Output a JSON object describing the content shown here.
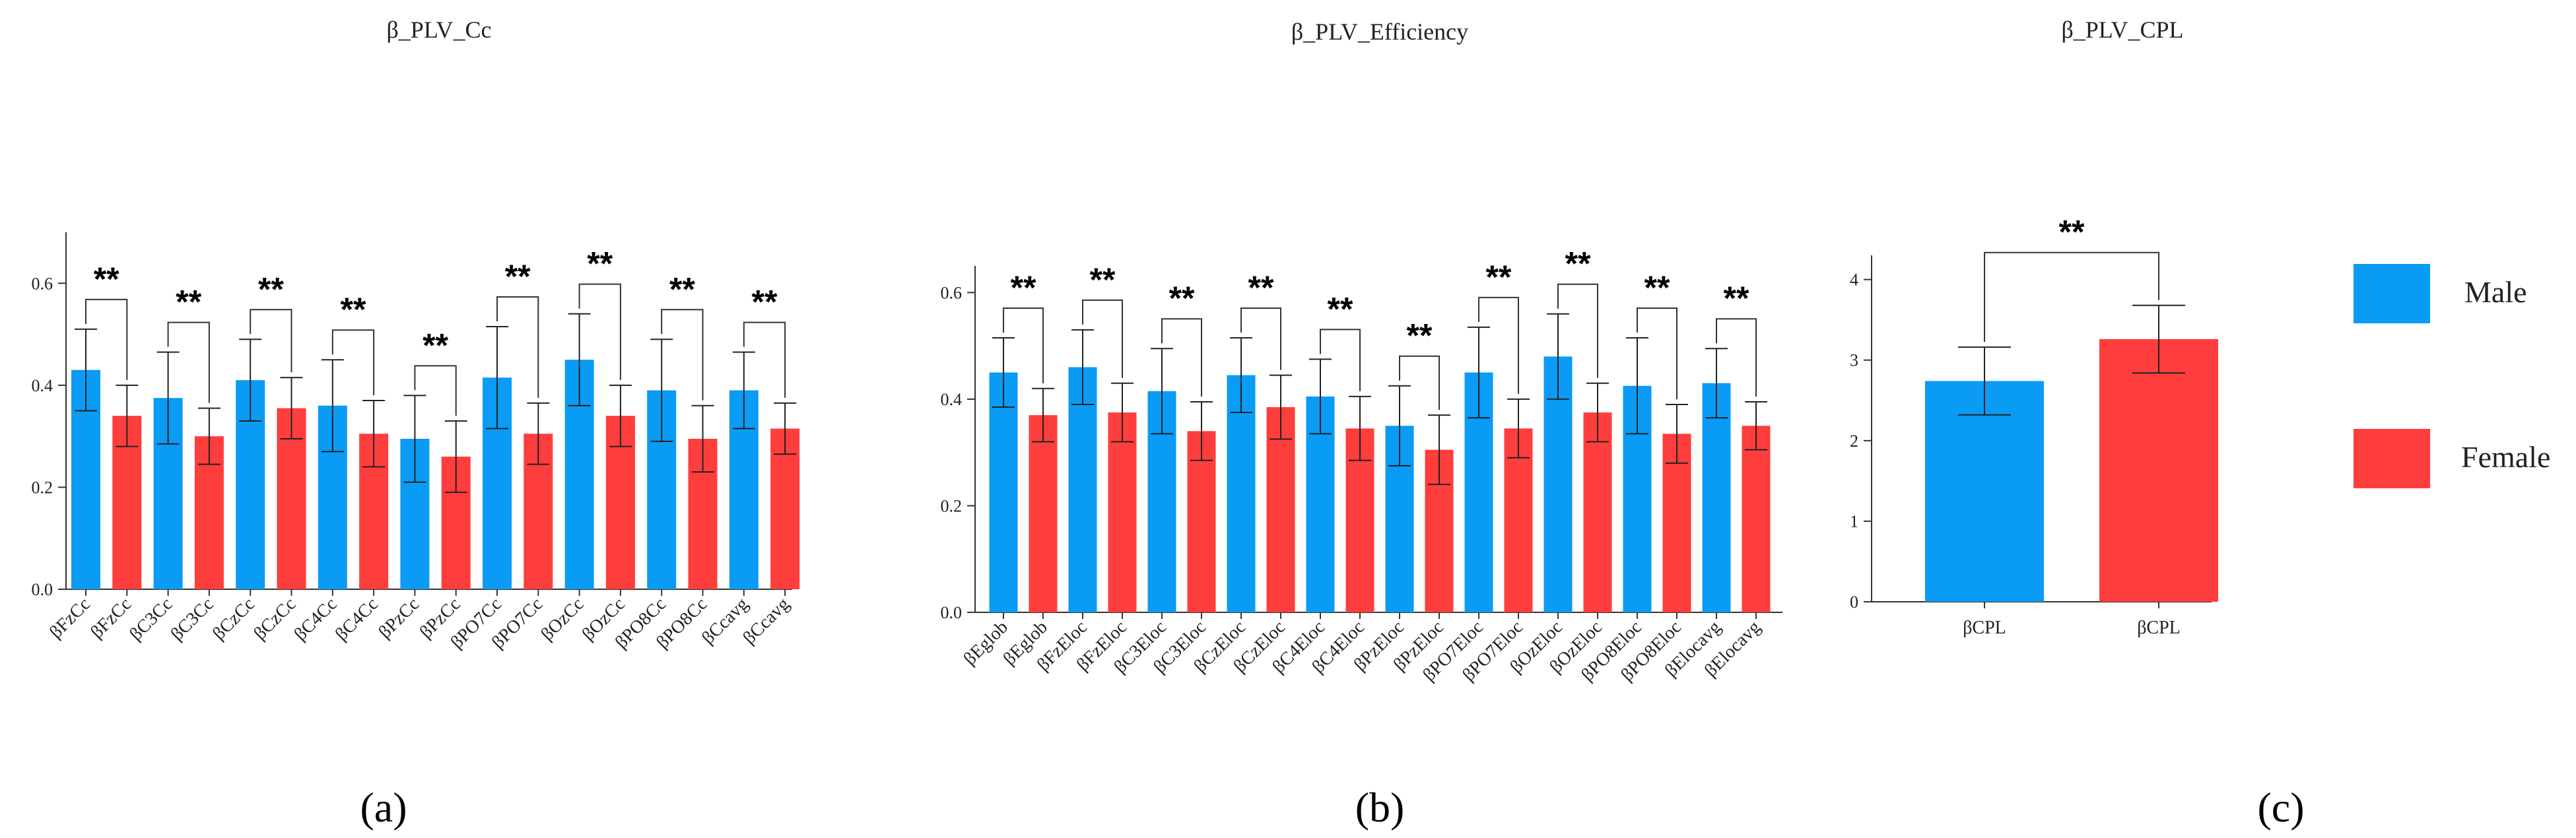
{
  "figure": {
    "panel_labels": [
      "(a)",
      "(b)",
      "(c)"
    ],
    "legend": [
      {
        "label": "Male",
        "color": "#0a9bf5"
      },
      {
        "label": "Female",
        "color": "#fe3d3d"
      }
    ]
  },
  "chart_data": [
    {
      "type": "bar",
      "title": "β_PLV_Cc",
      "ylim": [
        0,
        0.7
      ],
      "yticks": [
        0.0,
        0.2,
        0.4,
        0.6
      ],
      "ytick_labels": [
        "0.0",
        "0.2",
        "0.4",
        "0.6"
      ],
      "categories": [
        "βFzCc",
        "βFzCc",
        "βC3Cc",
        "βC3Cc",
        "βCzCc",
        "βCzCc",
        "βC4Cc",
        "βC4Cc",
        "βPzCc",
        "βPzCc",
        "βPO7Cc",
        "βPO7Cc",
        "βOzCc",
        "βOzCc",
        "βPO8Cc",
        "βPO8Cc",
        "βCcavg",
        "βCcavg"
      ],
      "groups": [
        "Male",
        "Female",
        "Male",
        "Female",
        "Male",
        "Female",
        "Male",
        "Female",
        "Male",
        "Female",
        "Male",
        "Female",
        "Male",
        "Female",
        "Male",
        "Female",
        "Male",
        "Female"
      ],
      "values": [
        0.43,
        0.34,
        0.375,
        0.3,
        0.41,
        0.355,
        0.36,
        0.305,
        0.295,
        0.26,
        0.415,
        0.305,
        0.45,
        0.34,
        0.39,
        0.295,
        0.39,
        0.315
      ],
      "errors": [
        0.08,
        0.06,
        0.09,
        0.055,
        0.08,
        0.06,
        0.09,
        0.065,
        0.085,
        0.07,
        0.1,
        0.06,
        0.09,
        0.06,
        0.1,
        0.065,
        0.075,
        0.05
      ],
      "significance": [
        "**",
        "**",
        "**",
        "**",
        "**",
        "**",
        "**",
        "**",
        "**"
      ]
    },
    {
      "type": "bar",
      "title": "β_PLV_Efficiency",
      "ylim": [
        0,
        0.65
      ],
      "yticks": [
        0.0,
        0.2,
        0.4,
        0.6
      ],
      "ytick_labels": [
        "0.0",
        "0.2",
        "0.4",
        "0.6"
      ],
      "categories": [
        "βEglob",
        "βEglob",
        "βFzEloc",
        "βFzEloc",
        "βC3Eloc",
        "βC3Eloc",
        "βCzEloc",
        "βCzEloc",
        "βC4Eloc",
        "βC4Eloc",
        "βPzEloc",
        "βPzEloc",
        "βPO7Eloc",
        "βPO7Eloc",
        "βOzEloc",
        "βOzEloc",
        "βPO8Eloc",
        "βPO8Eloc",
        "βElocavg",
        "βElocavg"
      ],
      "groups": [
        "Male",
        "Female",
        "Male",
        "Female",
        "Male",
        "Female",
        "Male",
        "Female",
        "Male",
        "Female",
        "Male",
        "Female",
        "Male",
        "Female",
        "Male",
        "Female",
        "Male",
        "Female",
        "Male",
        "Female"
      ],
      "values": [
        0.45,
        0.37,
        0.46,
        0.375,
        0.415,
        0.34,
        0.445,
        0.385,
        0.405,
        0.345,
        0.35,
        0.305,
        0.45,
        0.345,
        0.48,
        0.375,
        0.425,
        0.335,
        0.43,
        0.35
      ],
      "errors": [
        0.065,
        0.05,
        0.07,
        0.055,
        0.08,
        0.055,
        0.07,
        0.06,
        0.07,
        0.06,
        0.075,
        0.065,
        0.085,
        0.055,
        0.08,
        0.055,
        0.09,
        0.055,
        0.065,
        0.045
      ],
      "significance": [
        "**",
        "**",
        "**",
        "**",
        "**",
        "**",
        "**",
        "**",
        "**",
        "**"
      ]
    },
    {
      "type": "bar",
      "title": "β_PLV_CPL",
      "ylim": [
        0,
        4.3
      ],
      "yticks": [
        0,
        1,
        2,
        3,
        4
      ],
      "ytick_labels": [
        "0",
        "1",
        "2",
        "3",
        "4"
      ],
      "categories": [
        "βCPL",
        "βCPL"
      ],
      "groups": [
        "Male",
        "Female"
      ],
      "values": [
        2.74,
        3.26
      ],
      "errors": [
        0.42,
        0.42
      ],
      "significance": [
        "**"
      ]
    }
  ]
}
